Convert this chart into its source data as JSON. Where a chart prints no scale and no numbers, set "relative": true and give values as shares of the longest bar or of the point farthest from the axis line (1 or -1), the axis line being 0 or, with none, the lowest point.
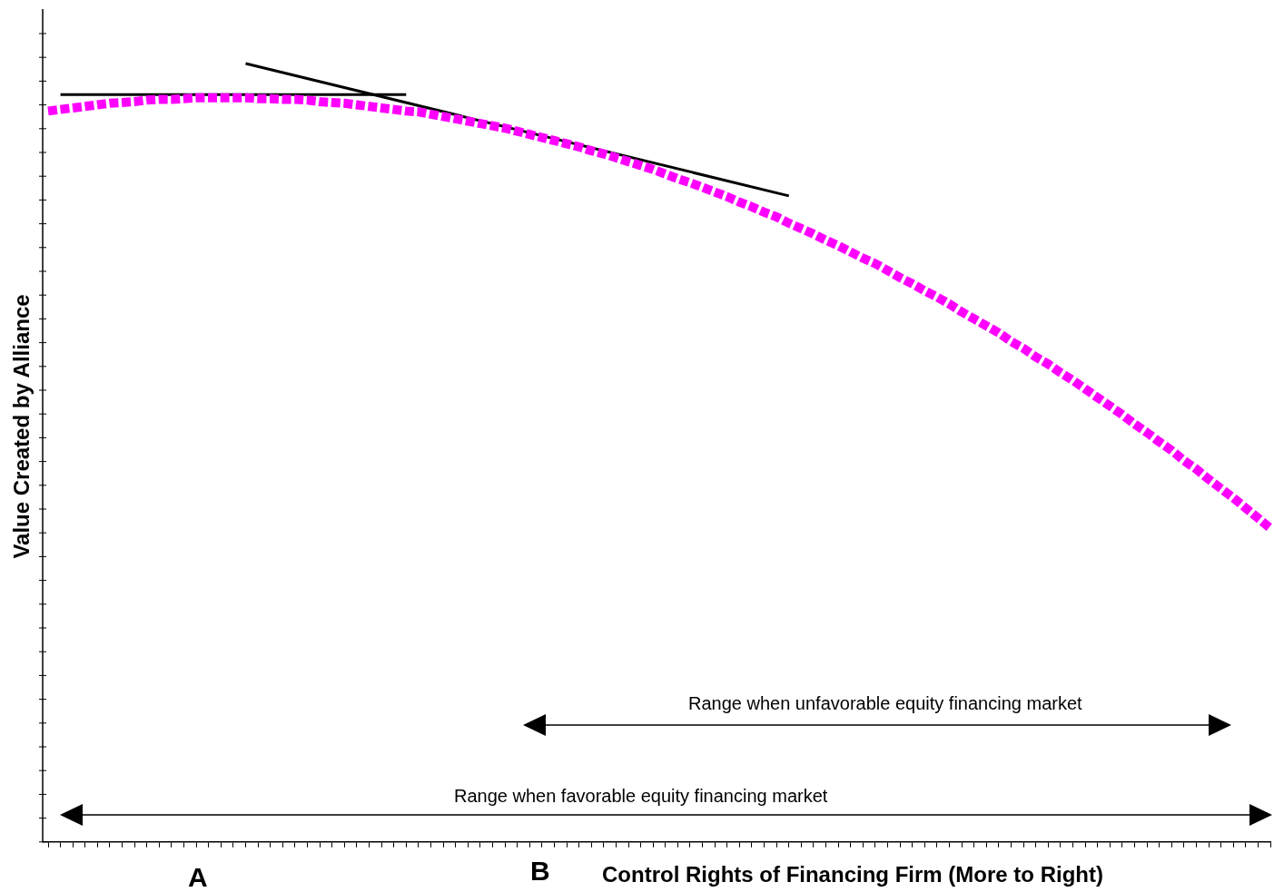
{
  "chart_data": {
    "type": "line",
    "relative": true,
    "xlabel": "Control  Rights of Financing Firm (More to Right)",
    "ylabel": "Value Created by Alliance",
    "legend": false,
    "marker": "none",
    "categories": [
      null,
      null,
      null,
      null,
      null,
      null,
      null,
      null,
      null,
      null,
      null,
      null,
      null,
      null,
      null,
      null,
      null,
      null,
      null,
      null,
      null,
      null,
      null,
      null,
      null,
      null,
      null,
      null,
      null,
      null,
      null,
      null,
      null,
      null,
      null,
      null,
      null,
      null,
      null,
      null,
      null,
      null,
      null,
      null,
      null,
      null,
      null,
      null,
      null,
      null,
      null,
      null,
      null,
      null,
      null,
      null,
      null,
      null,
      null,
      null,
      null,
      null,
      null,
      null,
      null,
      null,
      null,
      null,
      null,
      null,
      null,
      null,
      null,
      null,
      null,
      null,
      null,
      null,
      null,
      null,
      null,
      null,
      null,
      null,
      null,
      null,
      null,
      null,
      null,
      null,
      null,
      null,
      null,
      null,
      null,
      null,
      null,
      null,
      null,
      null
    ],
    "series": [
      {
        "type": "line",
        "color": "#ff00ff",
        "line_style": "dotted",
        "values": [
          0.939,
          0.941,
          0.943,
          0.945,
          0.947,
          0.949,
          0.95,
          0.951,
          0.953,
          0.954,
          0.954,
          0.955,
          0.956,
          0.956,
          0.956,
          0.956,
          0.956,
          0.955,
          0.955,
          0.954,
          0.954,
          0.953,
          0.951,
          0.95,
          0.949,
          0.947,
          0.945,
          0.943,
          0.941,
          0.939,
          0.938,
          0.935,
          0.932,
          0.929,
          0.926,
          0.923,
          0.92,
          0.917,
          0.913,
          0.909,
          0.905,
          0.901,
          0.897,
          0.893,
          0.888,
          0.884,
          0.879,
          0.874,
          0.869,
          0.864,
          0.858,
          0.852,
          0.847,
          0.841,
          0.835,
          0.829,
          0.822,
          0.816,
          0.809,
          0.803,
          0.795,
          0.788,
          0.781,
          0.773,
          0.766,
          0.758,
          0.75,
          0.743,
          0.734,
          0.725,
          0.717,
          0.708,
          0.7,
          0.691,
          0.681,
          0.672,
          0.663,
          0.654,
          0.643,
          0.634,
          0.623,
          0.614,
          0.603,
          0.593,
          0.582,
          0.571,
          0.56,
          0.549,
          0.537,
          0.526,
          0.514,
          0.503,
          0.49,
          0.479,
          0.466,
          0.454,
          0.442,
          0.429,
          0.416,
          0.403
        ]
      },
      {
        "type": "line",
        "color": "#000000",
        "values": [
          null,
          0.96,
          null,
          null,
          null,
          null,
          null,
          null,
          null,
          null,
          null,
          null,
          null,
          null,
          null,
          null,
          null,
          null,
          null,
          null,
          null,
          null,
          null,
          null,
          null,
          null,
          null,
          null,
          null,
          0.96,
          null,
          null,
          null,
          null,
          null,
          null,
          null,
          null,
          null,
          null,
          null,
          null,
          null,
          null,
          null,
          null,
          null,
          null,
          null,
          null,
          null,
          null,
          null,
          null,
          null,
          null,
          null,
          null,
          null,
          null,
          null,
          null,
          null,
          null,
          null,
          null,
          null,
          null,
          null,
          null,
          null,
          null,
          null,
          null,
          null,
          null,
          null,
          null,
          null,
          null,
          null,
          null,
          null,
          null,
          null,
          null,
          null,
          null,
          null,
          null,
          null,
          null,
          null,
          null,
          null,
          null,
          null,
          null,
          null,
          null
        ]
      },
      {
        "type": "line",
        "color": "#000000",
        "values": [
          null,
          null,
          null,
          null,
          null,
          null,
          null,
          null,
          null,
          null,
          null,
          null,
          null,
          null,
          null,
          null,
          1.0,
          null,
          null,
          null,
          null,
          null,
          null,
          null,
          null,
          null,
          null,
          null,
          null,
          null,
          null,
          null,
          null,
          null,
          null,
          null,
          null,
          null,
          null,
          null,
          null,
          null,
          null,
          null,
          null,
          null,
          null,
          null,
          null,
          null,
          null,
          null,
          null,
          null,
          null,
          null,
          null,
          null,
          null,
          null,
          0.83,
          null,
          null,
          null,
          null,
          null,
          null,
          null,
          null,
          null,
          null,
          null,
          null,
          null,
          null,
          null,
          null,
          null,
          null,
          null,
          null,
          null,
          null,
          null,
          null,
          null,
          null,
          null,
          null,
          null,
          null,
          null,
          null,
          null,
          null,
          null,
          null,
          null,
          null,
          null
        ]
      }
    ],
    "annotations": [
      "Range when unfavorable equity financing market",
      "Range when favorable equity financing market",
      "A",
      "B"
    ]
  }
}
